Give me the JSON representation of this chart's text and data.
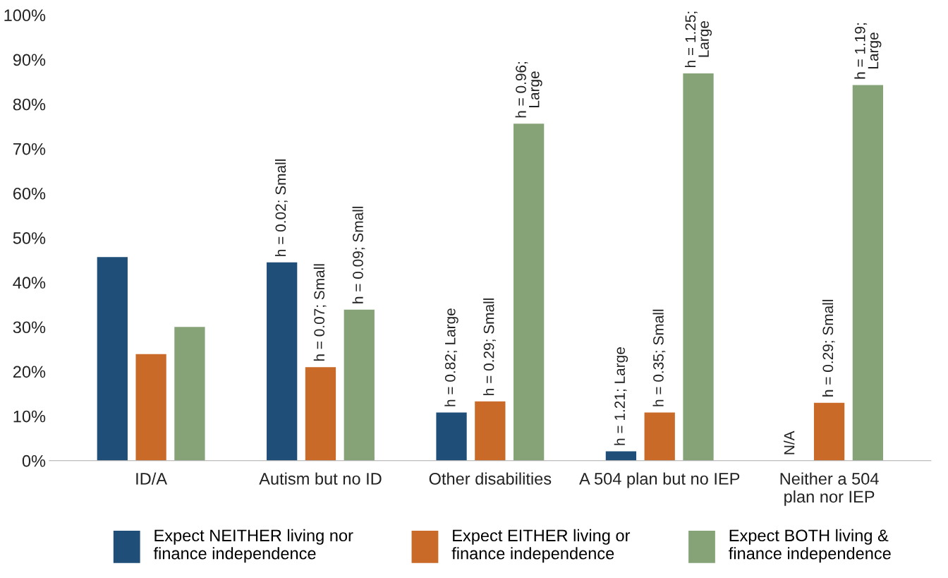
{
  "chart_data": {
    "type": "bar",
    "categories": [
      "ID/A",
      "Autism but no ID",
      "Other disabilities",
      "A 504 plan but no IEP",
      "Neither a 504\nplan nor IEP"
    ],
    "series": [
      {
        "name": "Expect NEITHER living nor\nfinance independence",
        "color": "#1f4e79",
        "values": [
          45.7,
          44.5,
          10.8,
          2.1,
          null
        ]
      },
      {
        "name": "Expect EITHER living or\nfinance independence",
        "color": "#c96a28",
        "values": [
          23.9,
          21.0,
          13.3,
          10.8,
          13.0
        ]
      },
      {
        "name": "Expect BOTH living &\nfinance independence",
        "color": "#86a377",
        "values": [
          30.0,
          33.9,
          75.6,
          86.9,
          84.3
        ]
      }
    ],
    "annotations": [
      "h = 0.02; Small",
      "h = 0.07; Small",
      "h = 0.09; Small",
      "h = 0.82; Large",
      "h = 0.29; Small",
      "h = 0.96;\nLarge",
      "h = 1.21; Large",
      "h = 0.35; Small",
      "h = 1.25;\nLarge",
      "N/A",
      "h = 0.29; Small",
      "h = 1.19;\nLarge"
    ],
    "ylim": [
      0,
      100
    ],
    "yticks": [
      {
        "value": 0,
        "label": "0%"
      },
      {
        "value": 10,
        "label": "10%"
      },
      {
        "value": 20,
        "label": "20%"
      },
      {
        "value": 30,
        "label": "30%"
      },
      {
        "value": 40,
        "label": "40%"
      },
      {
        "value": 50,
        "label": "50%"
      },
      {
        "value": 60,
        "label": "60%"
      },
      {
        "value": 70,
        "label": "70%"
      },
      {
        "value": 80,
        "label": "80%"
      },
      {
        "value": 90,
        "label": "90%"
      },
      {
        "value": 100,
        "label": "100%"
      }
    ],
    "grid": false,
    "legend": "bottom"
  }
}
